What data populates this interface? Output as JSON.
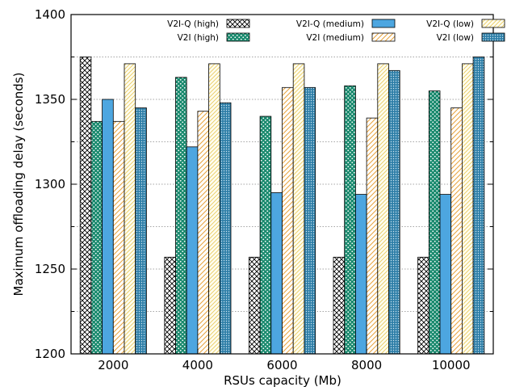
{
  "chart_data": {
    "type": "bar",
    "title": "",
    "xlabel": "RSUs capacity (Mb)",
    "ylabel": "Maximum offloading delay (seconds)",
    "ylim": [
      1200,
      1400
    ],
    "yticks": [
      1200,
      1250,
      1300,
      1350,
      1400
    ],
    "grid": "horizontal dotted",
    "legend_placement": "top",
    "categories": [
      "2000",
      "4000",
      "6000",
      "8000",
      "10000"
    ],
    "series": [
      {
        "name": "V2I-Q (high)",
        "values": [
          1375,
          1257,
          1257,
          1257,
          1257
        ],
        "pattern": "crosshatch",
        "color": "#000000"
      },
      {
        "name": "V2I (high)",
        "values": [
          1337,
          1363,
          1340,
          1358,
          1355
        ],
        "pattern": "dots",
        "color": "#1a8a6e"
      },
      {
        "name": "V2I-Q (medium)",
        "values": [
          1350,
          1322,
          1295,
          1294,
          1294
        ],
        "pattern": "solid",
        "color": "#4da6e0"
      },
      {
        "name": "V2I (medium)",
        "values": [
          1337,
          1343,
          1357,
          1339,
          1345
        ],
        "pattern": "diagonal",
        "color": "#e8a33c"
      },
      {
        "name": "V2I-Q (low)",
        "values": [
          1371,
          1371,
          1371,
          1371,
          1371
        ],
        "pattern": "fine-diagonal",
        "color": "#e8c95a"
      },
      {
        "name": "V2I (low)",
        "values": [
          1345,
          1348,
          1357,
          1367,
          1375
        ],
        "pattern": "dense-dots",
        "color": "#2f7fa8"
      }
    ]
  }
}
